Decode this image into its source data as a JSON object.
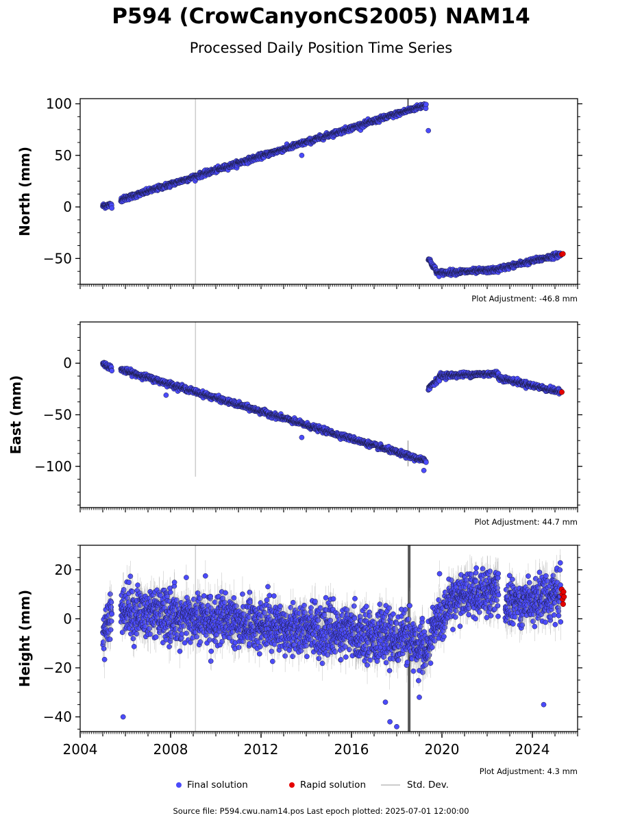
{
  "header": {
    "title": "P594 (CrowCanyonCS2005) NAM14",
    "subtitle": "Processed Daily Position Time Series"
  },
  "footer": {
    "source": "Source file: P594.cwu.nam14.pos  Last epoch plotted: 2025-07-01 12:00:00"
  },
  "legend": {
    "final": "Final solution",
    "rapid": "Rapid solution",
    "stddev": "Std. Dev."
  },
  "colors": {
    "final": "#4b4bfa",
    "rapid": "#e50000",
    "stddev": "#bbbbbb",
    "axis": "#000000"
  },
  "chart_data": [
    {
      "type": "scatter",
      "ylabel": "North (mm)",
      "adjustment": "Plot Adjustment: -46.8 mm",
      "xlim": [
        2004.0,
        2026.0
      ],
      "ylim": [
        -75,
        105
      ],
      "yticks": [
        -50,
        0,
        50,
        100
      ],
      "yticklabels": [
        "−50",
        "0",
        "50",
        "100"
      ],
      "segments": [
        {
          "from": 2005.0,
          "to": 2005.4,
          "y0": 1,
          "y1": 2,
          "noise": 2
        },
        {
          "from": 2005.8,
          "to": 2019.3,
          "y0": 7,
          "y1": 99,
          "noise": 2
        },
        {
          "from": 2019.4,
          "to": 2019.8,
          "y0": -50,
          "y1": -64,
          "noise": 2
        },
        {
          "from": 2019.8,
          "to": 2022.5,
          "y0": -64,
          "y1": -61,
          "noise": 2
        },
        {
          "from": 2022.5,
          "to": 2025.25,
          "y0": -60,
          "y1": -46,
          "noise": 2
        }
      ],
      "outliers": [
        [
          2019.4,
          74
        ],
        [
          2013.8,
          50
        ]
      ],
      "rapid": [
        [
          2025.3,
          -46
        ],
        [
          2025.35,
          -45.5
        ]
      ],
      "stddev_markers": [
        [
          2009.1,
          -75,
          105,
          "#cccccc",
          1.5
        ],
        [
          2018.5,
          95,
          105,
          "#555555",
          2
        ]
      ]
    },
    {
      "type": "scatter",
      "ylabel": "East (mm)",
      "adjustment": "Plot Adjustment: 44.7 mm",
      "xlim": [
        2004.0,
        2026.0
      ],
      "ylim": [
        -140,
        40
      ],
      "yticks": [
        -100,
        -50,
        0
      ],
      "yticklabels": [
        "−100",
        "−50",
        "0"
      ],
      "segments": [
        {
          "from": 2005.0,
          "to": 2005.4,
          "y0": 0,
          "y1": -5,
          "noise": 2
        },
        {
          "from": 2005.8,
          "to": 2019.3,
          "y0": -6,
          "y1": -95,
          "noise": 2
        },
        {
          "from": 2019.4,
          "to": 2019.9,
          "y0": -24,
          "y1": -14,
          "noise": 2
        },
        {
          "from": 2019.9,
          "to": 2022.5,
          "y0": -12,
          "y1": -10,
          "noise": 2
        },
        {
          "from": 2022.5,
          "to": 2025.25,
          "y0": -14,
          "y1": -28,
          "noise": 2
        }
      ],
      "outliers": [
        [
          2019.2,
          -104
        ],
        [
          2007.8,
          -31
        ],
        [
          2013.8,
          -72
        ]
      ],
      "rapid": [
        [
          2025.3,
          -28
        ]
      ],
      "stddev_markers": [
        [
          2009.1,
          -110,
          40,
          "#cccccc",
          1.5
        ],
        [
          2018.5,
          -100,
          -75,
          "#888888",
          1
        ]
      ]
    },
    {
      "type": "scatter",
      "ylabel": "Height (mm)",
      "adjustment": "Plot Adjustment: 4.3 mm",
      "xlim": [
        2004.0,
        2026.0
      ],
      "ylim": [
        -46,
        30
      ],
      "yticks": [
        -40,
        -20,
        0,
        20
      ],
      "yticklabels": [
        "−40",
        "−20",
        "0",
        "20"
      ],
      "xticks": [
        2004,
        2008,
        2012,
        2016,
        2020,
        2024
      ],
      "xticklabels": [
        "2004",
        "2008",
        "2012",
        "2016",
        "2020",
        "2024"
      ],
      "segments": [
        {
          "from": 2005.0,
          "to": 2005.4,
          "y0": -4,
          "y1": 0,
          "noise": 9
        },
        {
          "from": 2005.8,
          "to": 2018.5,
          "y0": 3,
          "y1": -8,
          "noise": 9
        },
        {
          "from": 2018.5,
          "to": 2019.5,
          "y0": -8,
          "y1": -14,
          "noise": 9
        },
        {
          "from": 2019.5,
          "to": 2020.5,
          "y0": -6,
          "y1": 8,
          "noise": 8
        },
        {
          "from": 2020.5,
          "to": 2022.5,
          "y0": 9,
          "y1": 11,
          "noise": 8
        },
        {
          "from": 2022.8,
          "to": 2025.25,
          "y0": 6,
          "y1": 10,
          "noise": 8
        }
      ],
      "outliers": [
        [
          2005.9,
          -40
        ],
        [
          2017.7,
          -42
        ],
        [
          2017.5,
          -34
        ],
        [
          2018.0,
          -44
        ],
        [
          2024.5,
          -35
        ],
        [
          2019.0,
          -32
        ]
      ],
      "rapid": [
        [
          2025.3,
          12
        ],
        [
          2025.32,
          10
        ],
        [
          2025.34,
          8
        ],
        [
          2025.36,
          6
        ],
        [
          2025.38,
          11
        ],
        [
          2025.4,
          9
        ]
      ],
      "stddev_markers": [
        [
          2009.1,
          -46,
          30,
          "#cccccc",
          1.5
        ],
        [
          2018.55,
          -46,
          30,
          "#555555",
          4
        ]
      ]
    }
  ]
}
